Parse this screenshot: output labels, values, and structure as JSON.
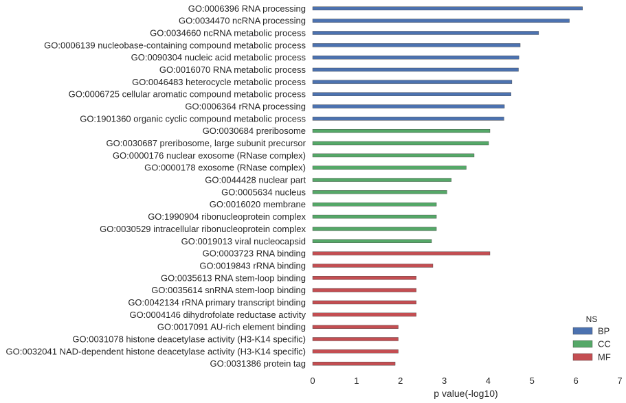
{
  "chart_data": {
    "type": "bar",
    "orientation": "horizontal",
    "xlabel": "p value(-log10)",
    "xlim": [
      0,
      7
    ],
    "xticks": [
      0,
      1,
      2,
      3,
      4,
      5,
      6,
      7
    ],
    "grid": false,
    "legend": {
      "title": "NS",
      "placement": "bottom-right",
      "entries": [
        {
          "name": "BP",
          "color": "#4c72b0"
        },
        {
          "name": "CC",
          "color": "#55a868"
        },
        {
          "name": "MF",
          "color": "#c44e52"
        }
      ]
    },
    "categories": [
      {
        "label": "GO:0006396 RNA processing",
        "value": 6.15,
        "ns": "BP"
      },
      {
        "label": "GO:0034470 ncRNA processing",
        "value": 5.85,
        "ns": "BP"
      },
      {
        "label": "GO:0034660 ncRNA metabolic process",
        "value": 5.15,
        "ns": "BP"
      },
      {
        "label": "GO:0006139 nucleobase-containing compound metabolic process",
        "value": 4.73,
        "ns": "BP"
      },
      {
        "label": "GO:0090304 nucleic acid metabolic process",
        "value": 4.7,
        "ns": "BP"
      },
      {
        "label": "GO:0016070 RNA metabolic process",
        "value": 4.69,
        "ns": "BP"
      },
      {
        "label": "GO:0046483 heterocycle metabolic process",
        "value": 4.54,
        "ns": "BP"
      },
      {
        "label": "GO:0006725 cellular aromatic compound metabolic process",
        "value": 4.52,
        "ns": "BP"
      },
      {
        "label": "GO:0006364 rRNA processing",
        "value": 4.37,
        "ns": "BP"
      },
      {
        "label": "GO:1901360 organic cyclic compound metabolic process",
        "value": 4.36,
        "ns": "BP"
      },
      {
        "label": "GO:0030684 preribosome",
        "value": 4.04,
        "ns": "CC"
      },
      {
        "label": "GO:0030687 preribosome, large subunit precursor",
        "value": 4.01,
        "ns": "CC"
      },
      {
        "label": "GO:0000176 nuclear exosome (RNase complex)",
        "value": 3.68,
        "ns": "CC"
      },
      {
        "label": "GO:0000178 exosome (RNase complex)",
        "value": 3.5,
        "ns": "CC"
      },
      {
        "label": "GO:0044428 nuclear part",
        "value": 3.16,
        "ns": "CC"
      },
      {
        "label": "GO:0005634 nucleus",
        "value": 3.06,
        "ns": "CC"
      },
      {
        "label": "GO:0016020 membrane",
        "value": 2.82,
        "ns": "CC"
      },
      {
        "label": "GO:1990904 ribonucleoprotein complex",
        "value": 2.82,
        "ns": "CC"
      },
      {
        "label": "GO:0030529 intracellular ribonucleoprotein complex",
        "value": 2.82,
        "ns": "CC"
      },
      {
        "label": "GO:0019013 viral nucleocapsid",
        "value": 2.71,
        "ns": "CC"
      },
      {
        "label": "GO:0003723 RNA binding",
        "value": 4.04,
        "ns": "MF"
      },
      {
        "label": "GO:0019843 rRNA binding",
        "value": 2.74,
        "ns": "MF"
      },
      {
        "label": "GO:0035613 RNA stem-loop binding",
        "value": 2.36,
        "ns": "MF"
      },
      {
        "label": "GO:0035614 snRNA stem-loop binding",
        "value": 2.36,
        "ns": "MF"
      },
      {
        "label": "GO:0042134 rRNA primary transcript binding",
        "value": 2.36,
        "ns": "MF"
      },
      {
        "label": "GO:0004146 dihydrofolate reductase activity",
        "value": 2.36,
        "ns": "MF"
      },
      {
        "label": "GO:0017091 AU-rich element binding",
        "value": 1.95,
        "ns": "MF"
      },
      {
        "label": "GO:0031078 histone deacetylase activity (H3-K14 specific)",
        "value": 1.95,
        "ns": "MF"
      },
      {
        "label": "GO:0032041 NAD-dependent histone deacetylase activity (H3-K14 specific)",
        "value": 1.95,
        "ns": "MF"
      },
      {
        "label": "GO:0031386 protein tag",
        "value": 1.88,
        "ns": "MF"
      }
    ]
  }
}
